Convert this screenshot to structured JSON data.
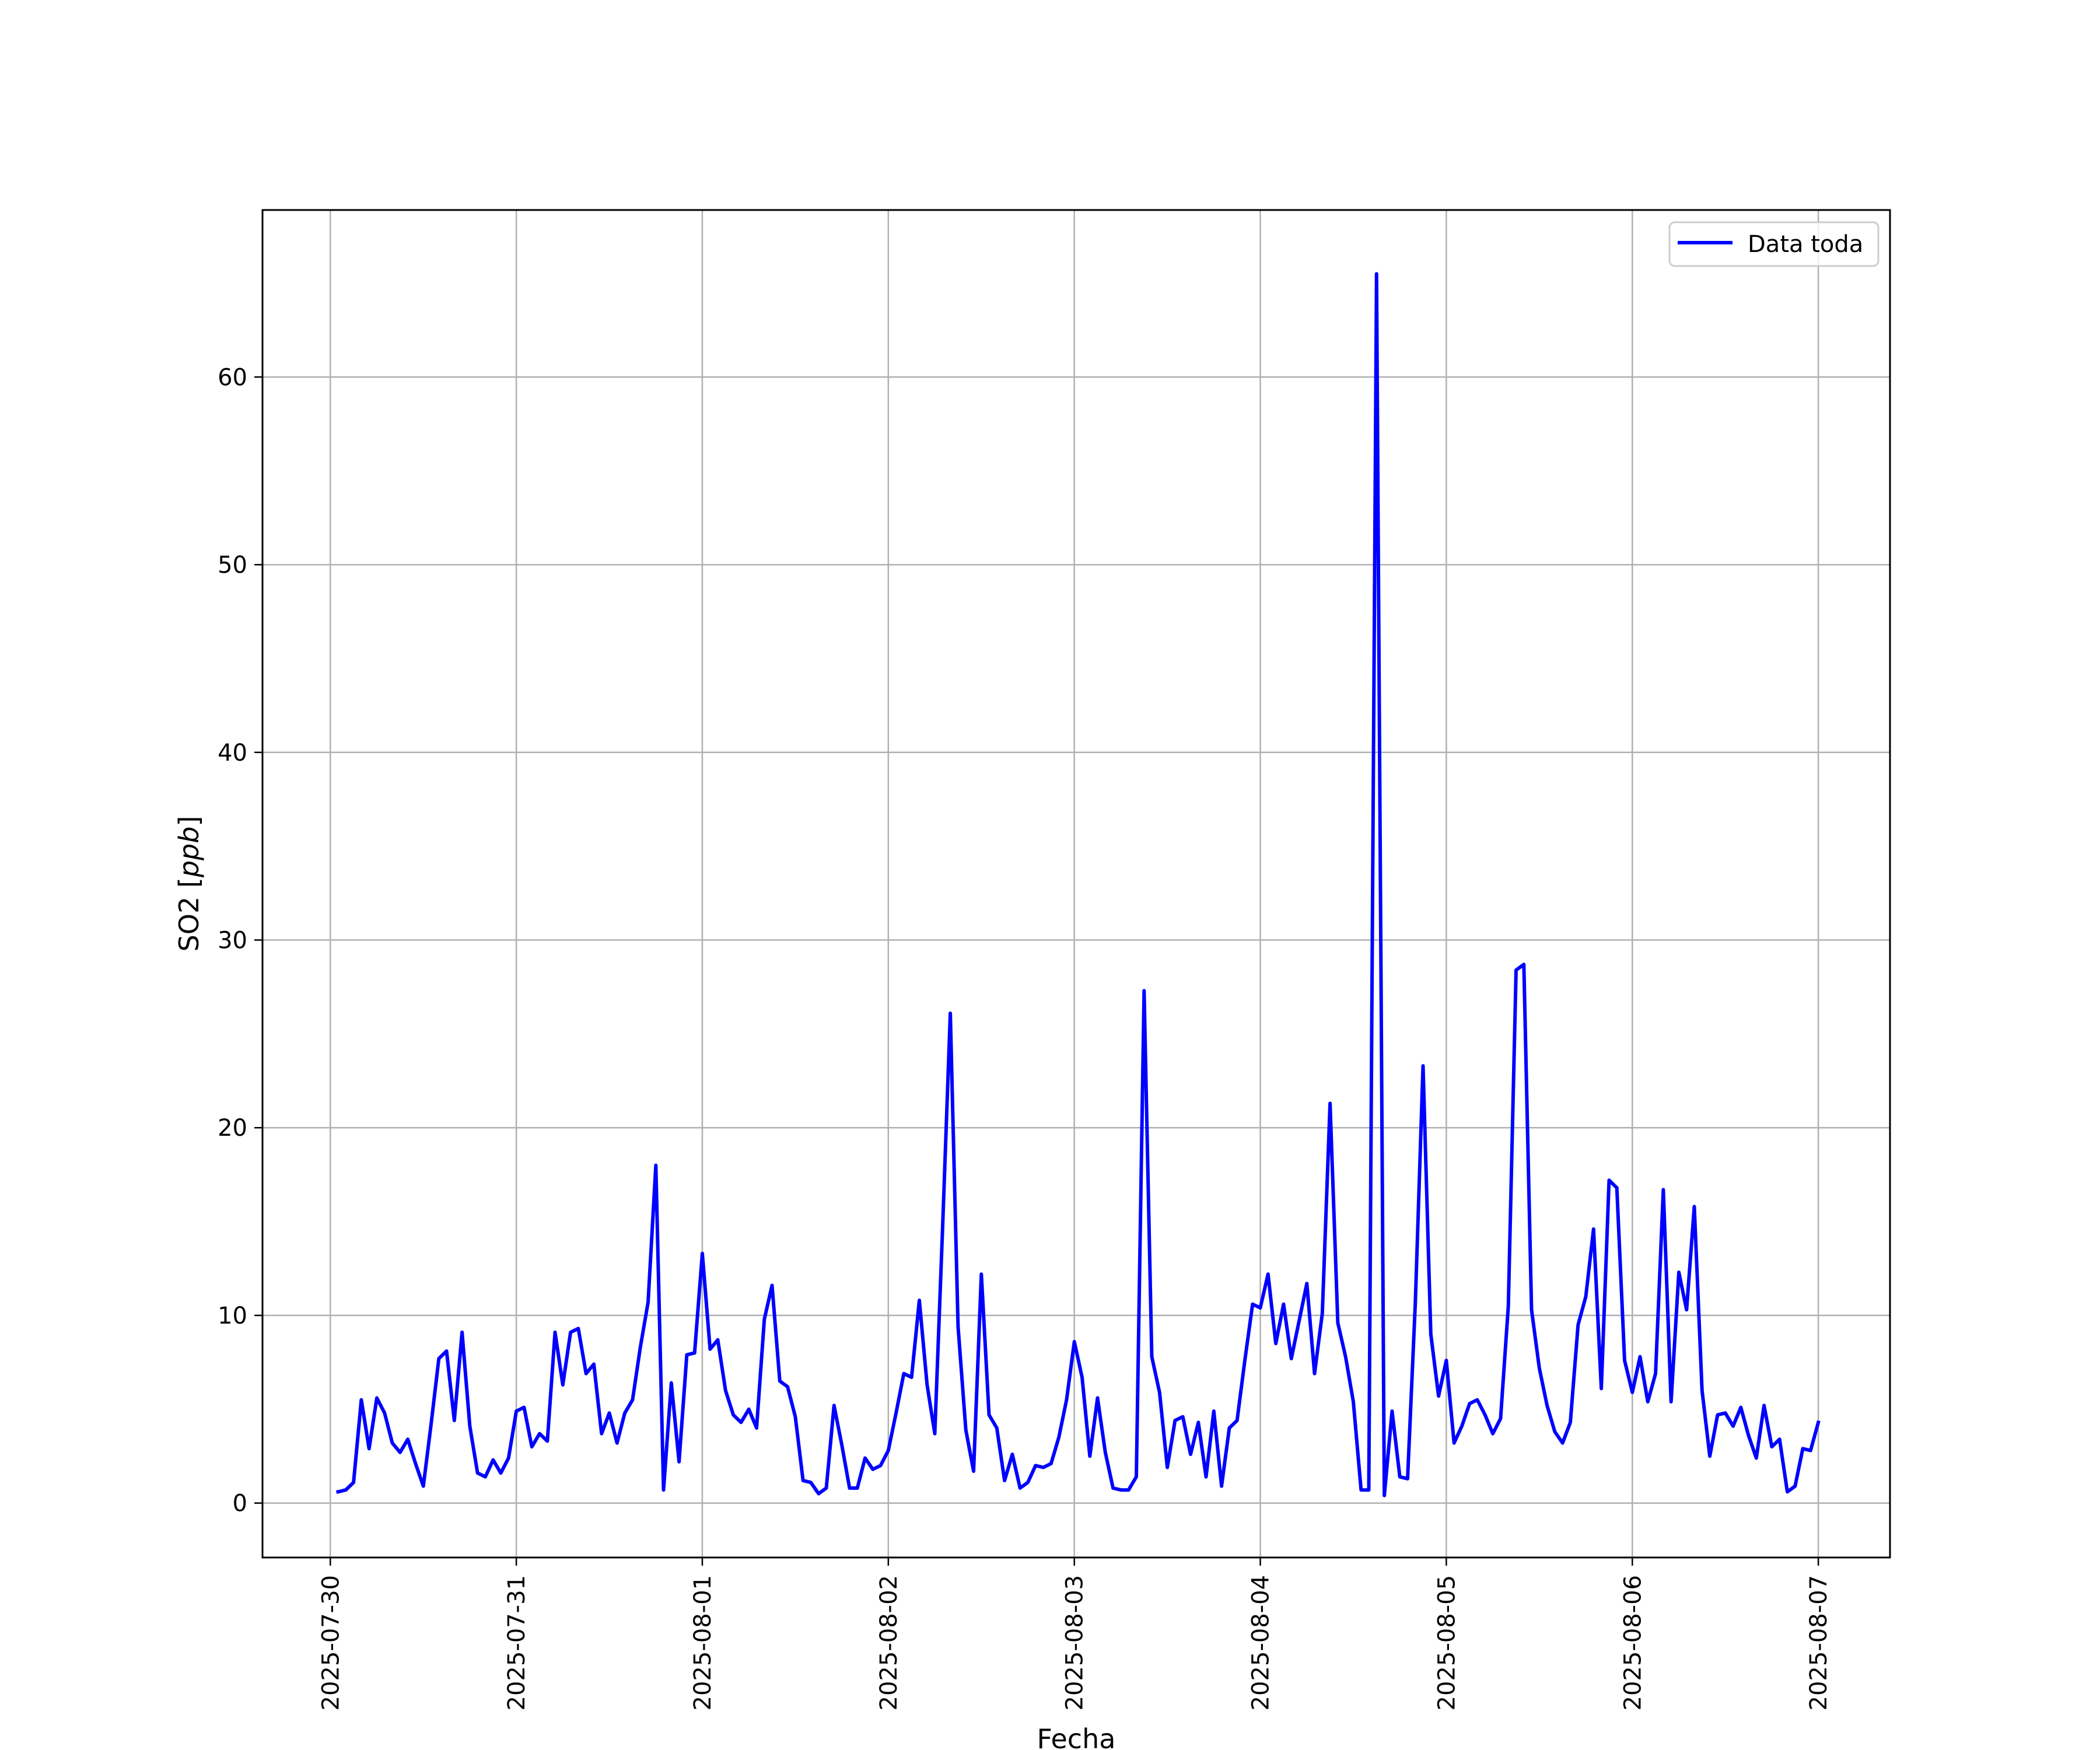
{
  "chart_data": {
    "type": "line",
    "xlabel": "Fecha",
    "ylabel": "SO2 [ppb]",
    "ylabel_text": "SO2 [",
    "ylabel_unit": "ppb",
    "ylabel_close": "]",
    "x_ticks": [
      "2025-07-30",
      "2025-07-31",
      "2025-08-01",
      "2025-08-02",
      "2025-08-03",
      "2025-08-04",
      "2025-08-05",
      "2025-08-06",
      "2025-08-07"
    ],
    "y_ticks": [
      0,
      10,
      20,
      30,
      40,
      50,
      60
    ],
    "xlim": [
      "2025-07-29T15:15",
      "2025-08-07T09:15"
    ],
    "ylim": [
      -2.9,
      68.9
    ],
    "grid": true,
    "legend_position": "top-right",
    "series": [
      {
        "name": "Data toda",
        "color": "#0000ff",
        "x": [
          "2025-07-30T01:00",
          "2025-07-30T02:00",
          "2025-07-30T03:00",
          "2025-07-30T04:00",
          "2025-07-30T05:00",
          "2025-07-30T06:00",
          "2025-07-30T07:00",
          "2025-07-30T08:00",
          "2025-07-30T09:00",
          "2025-07-30T10:00",
          "2025-07-30T11:00",
          "2025-07-30T12:00",
          "2025-07-30T13:00",
          "2025-07-30T14:00",
          "2025-07-30T15:00",
          "2025-07-30T16:00",
          "2025-07-30T17:00",
          "2025-07-30T18:00",
          "2025-07-30T19:00",
          "2025-07-30T20:00",
          "2025-07-30T21:00",
          "2025-07-30T22:00",
          "2025-07-30T23:00",
          "2025-07-31T00:00",
          "2025-07-31T01:00",
          "2025-07-31T02:00",
          "2025-07-31T03:00",
          "2025-07-31T04:00",
          "2025-07-31T05:00",
          "2025-07-31T06:00",
          "2025-07-31T07:00",
          "2025-07-31T08:00",
          "2025-07-31T09:00",
          "2025-07-31T10:00",
          "2025-07-31T11:00",
          "2025-07-31T12:00",
          "2025-07-31T13:00",
          "2025-07-31T14:00",
          "2025-07-31T15:00",
          "2025-07-31T16:00",
          "2025-07-31T17:00",
          "2025-07-31T18:00",
          "2025-07-31T19:00",
          "2025-07-31T20:00",
          "2025-07-31T21:00",
          "2025-07-31T22:00",
          "2025-07-31T23:00",
          "2025-08-01T00:00",
          "2025-08-01T01:00",
          "2025-08-01T02:00",
          "2025-08-01T03:00",
          "2025-08-01T04:00",
          "2025-08-01T05:00",
          "2025-08-01T06:00",
          "2025-08-01T07:00",
          "2025-08-01T08:00",
          "2025-08-01T09:00",
          "2025-08-01T10:00",
          "2025-08-01T11:00",
          "2025-08-01T12:00",
          "2025-08-01T13:00",
          "2025-08-01T14:00",
          "2025-08-01T15:00",
          "2025-08-01T16:00",
          "2025-08-01T17:00",
          "2025-08-01T18:00",
          "2025-08-01T19:00",
          "2025-08-01T20:00",
          "2025-08-01T21:00",
          "2025-08-01T22:00",
          "2025-08-01T23:00",
          "2025-08-02T00:00",
          "2025-08-02T01:00",
          "2025-08-02T02:00",
          "2025-08-02T03:00",
          "2025-08-02T04:00",
          "2025-08-02T05:00",
          "2025-08-02T06:00",
          "2025-08-02T07:00",
          "2025-08-02T08:00",
          "2025-08-02T09:00",
          "2025-08-02T10:00",
          "2025-08-02T11:00",
          "2025-08-02T12:00",
          "2025-08-02T13:00",
          "2025-08-02T14:00",
          "2025-08-02T15:00",
          "2025-08-02T16:00",
          "2025-08-02T17:00",
          "2025-08-02T18:00",
          "2025-08-02T19:00",
          "2025-08-02T20:00",
          "2025-08-02T21:00",
          "2025-08-02T22:00",
          "2025-08-02T23:00",
          "2025-08-03T00:00",
          "2025-08-03T01:00",
          "2025-08-03T02:00",
          "2025-08-03T03:00",
          "2025-08-03T04:00",
          "2025-08-03T05:00",
          "2025-08-03T06:00",
          "2025-08-03T07:00",
          "2025-08-03T08:00",
          "2025-08-03T09:00",
          "2025-08-03T10:00",
          "2025-08-03T11:00",
          "2025-08-03T12:00",
          "2025-08-03T13:00",
          "2025-08-03T14:00",
          "2025-08-03T15:00",
          "2025-08-03T16:00",
          "2025-08-03T17:00",
          "2025-08-03T18:00",
          "2025-08-03T19:00",
          "2025-08-03T20:00",
          "2025-08-03T21:00",
          "2025-08-03T22:00",
          "2025-08-03T23:00",
          "2025-08-04T00:00",
          "2025-08-04T01:00",
          "2025-08-04T02:00",
          "2025-08-04T03:00",
          "2025-08-04T04:00",
          "2025-08-04T05:00",
          "2025-08-04T06:00",
          "2025-08-04T07:00",
          "2025-08-04T08:00",
          "2025-08-04T09:00",
          "2025-08-04T10:00",
          "2025-08-04T11:00",
          "2025-08-04T12:00",
          "2025-08-04T13:00",
          "2025-08-04T14:00",
          "2025-08-04T15:00",
          "2025-08-04T16:00",
          "2025-08-04T17:00",
          "2025-08-04T18:00",
          "2025-08-04T19:00",
          "2025-08-04T20:00",
          "2025-08-04T21:00",
          "2025-08-04T22:00",
          "2025-08-04T23:00",
          "2025-08-05T00:00",
          "2025-08-05T01:00",
          "2025-08-05T02:00",
          "2025-08-05T03:00",
          "2025-08-05T04:00",
          "2025-08-05T05:00",
          "2025-08-05T06:00",
          "2025-08-05T07:00",
          "2025-08-05T08:00",
          "2025-08-05T09:00",
          "2025-08-05T10:00",
          "2025-08-05T11:00",
          "2025-08-05T12:00",
          "2025-08-05T13:00",
          "2025-08-05T14:00",
          "2025-08-05T15:00",
          "2025-08-05T16:00",
          "2025-08-05T17:00",
          "2025-08-05T18:00",
          "2025-08-05T19:00",
          "2025-08-05T20:00",
          "2025-08-05T21:00",
          "2025-08-05T22:00",
          "2025-08-05T23:00",
          "2025-08-06T00:00",
          "2025-08-06T01:00",
          "2025-08-06T02:00",
          "2025-08-06T03:00",
          "2025-08-06T04:00",
          "2025-08-06T05:00",
          "2025-08-06T06:00",
          "2025-08-06T07:00",
          "2025-08-06T08:00",
          "2025-08-06T09:00",
          "2025-08-06T10:00",
          "2025-08-06T11:00",
          "2025-08-06T12:00",
          "2025-08-06T13:00",
          "2025-08-06T14:00",
          "2025-08-06T15:00",
          "2025-08-06T16:00",
          "2025-08-06T17:00",
          "2025-08-06T18:00",
          "2025-08-06T19:00",
          "2025-08-06T20:00",
          "2025-08-06T21:00",
          "2025-08-06T22:00",
          "2025-08-06T23:00",
          "2025-08-07T00:00"
        ],
        "values": [
          0.6,
          0.7,
          1.1,
          5.5,
          2.9,
          5.6,
          4.8,
          3.2,
          2.7,
          3.4,
          2.1,
          0.9,
          4.2,
          7.7,
          8.1,
          4.4,
          9.1,
          4.1,
          1.6,
          1.4,
          2.3,
          1.6,
          2.4,
          4.9,
          5.1,
          3.0,
          3.7,
          3.3,
          9.1,
          6.3,
          9.1,
          9.3,
          6.9,
          7.4,
          3.7,
          4.8,
          3.2,
          4.8,
          5.5,
          8.3,
          10.7,
          18.0,
          0.7,
          6.4,
          2.2,
          7.9,
          8.0,
          13.3,
          8.2,
          8.7,
          6.0,
          4.7,
          4.3,
          5.0,
          4.0,
          9.8,
          11.6,
          6.5,
          6.2,
          4.6,
          1.2,
          1.1,
          0.5,
          0.8,
          5.2,
          3.1,
          0.8,
          0.8,
          2.4,
          1.8,
          2.0,
          2.8,
          4.8,
          6.9,
          6.7,
          10.8,
          6.3,
          3.7,
          14.6,
          26.1,
          9.4,
          3.9,
          1.7,
          12.2,
          4.7,
          4.0,
          1.2,
          2.6,
          0.8,
          1.1,
          2.0,
          1.9,
          2.1,
          3.5,
          5.5,
          8.6,
          6.7,
          2.5,
          5.6,
          2.7,
          0.8,
          0.7,
          0.7,
          1.4,
          27.3,
          7.8,
          5.9,
          1.9,
          4.4,
          4.6,
          2.6,
          4.3,
          1.4,
          4.9,
          0.9,
          4.0,
          4.4,
          7.6,
          10.6,
          10.4,
          12.2,
          8.5,
          10.6,
          7.7,
          9.7,
          11.7,
          6.9,
          10.1,
          21.3,
          9.6,
          7.8,
          5.4,
          0.7,
          0.7,
          65.5,
          0.4,
          4.9,
          1.4,
          1.3,
          10.7,
          23.3,
          9.0,
          5.7,
          7.6,
          3.2,
          4.1,
          5.3,
          5.5,
          4.7,
          3.7,
          4.5,
          10.5,
          28.4,
          28.7,
          10.3,
          7.2,
          5.2,
          3.8,
          3.2,
          4.3,
          9.5,
          11.0,
          14.6,
          6.1,
          17.2,
          16.8,
          7.6,
          5.9,
          7.8,
          5.4,
          6.9,
          16.7,
          5.4,
          12.3,
          10.3,
          15.8,
          6.0,
          2.5,
          4.7,
          4.8,
          4.1,
          5.1,
          3.6,
          2.4,
          5.2,
          3.0,
          3.4,
          0.6,
          0.9,
          2.9,
          2.8,
          4.3
        ]
      }
    ]
  }
}
